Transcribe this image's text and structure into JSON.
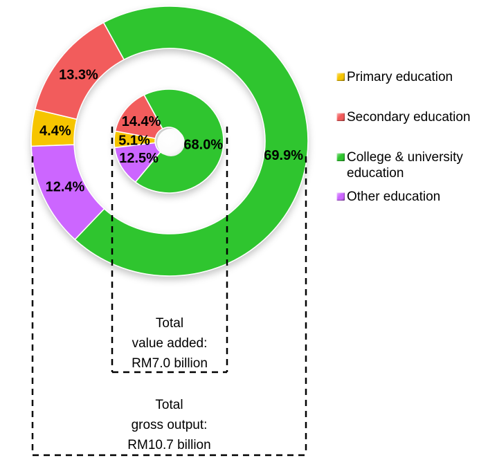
{
  "colors": {
    "background": "#FFFFFF",
    "categories": [
      "#F6C500",
      "#F25C5C",
      "#2FC52F",
      "#CC66FF"
    ],
    "label_text": "#000000",
    "dashed_line": "#000000",
    "hole_fill": "#FFFFFF"
  },
  "legend": {
    "position": "right",
    "items": [
      {
        "label": "Primary education",
        "color": "#F6C500"
      },
      {
        "label": "Secondary education",
        "color": "#F25C5C"
      },
      {
        "label": "College & university education",
        "color": "#2FC52F"
      },
      {
        "label": "Other education",
        "color": "#CC66FF"
      }
    ]
  },
  "chart_data": {
    "type": "pie",
    "subtype": "concentric-donut",
    "categories": [
      "Primary education",
      "Secondary education",
      "College & university education",
      "Other education"
    ],
    "unit": "%",
    "legend_position": "right",
    "grid": false,
    "series": [
      {
        "name": "Total gross output",
        "ring": "outer",
        "total": "RM10.7 billion",
        "values": [
          4.4,
          13.3,
          69.9,
          12.4
        ],
        "labels": [
          "4.4%",
          "13.3%",
          "69.9%",
          "12.4%"
        ],
        "start_angle_deg": 267.8
      },
      {
        "name": "Total value added",
        "ring": "inner",
        "total": "RM7.0 billion",
        "values": [
          5.1,
          14.4,
          68.0,
          12.5
        ],
        "labels": [
          "5.1%",
          "14.4%",
          "68.0%",
          "12.5%"
        ],
        "start_angle_deg": 262.8
      }
    ]
  },
  "annotations": {
    "value_added_box": {
      "lines": [
        "Total",
        "value added:",
        "RM7.0 billion"
      ]
    },
    "gross_output_box": {
      "lines": [
        "Total",
        "gross output:",
        "RM10.7 billion"
      ]
    }
  }
}
